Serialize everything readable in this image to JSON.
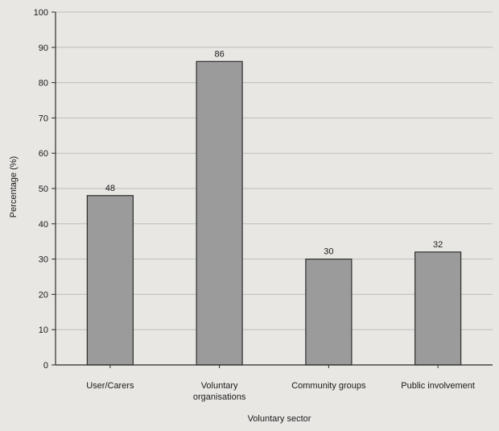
{
  "chart_data": {
    "type": "bar",
    "title": "",
    "xlabel": "Voluntary sector",
    "ylabel": "Percentage (%)",
    "categories": [
      "User/Carers",
      "Voluntary organisations",
      "Community groups",
      "Public involvement"
    ],
    "category_label_lines": [
      [
        "User/Carers"
      ],
      [
        "Voluntary",
        "organisations"
      ],
      [
        "Community groups"
      ],
      [
        "Public involvement"
      ]
    ],
    "values": [
      48,
      86,
      30,
      32
    ],
    "data_labels": [
      "48",
      "86",
      "30",
      "32"
    ],
    "ylim": [
      0,
      100
    ],
    "yticks": [
      0,
      10,
      20,
      30,
      40,
      50,
      60,
      70,
      80,
      90,
      100
    ],
    "grid": true,
    "legend": "none",
    "colors": {
      "bar_fill": "#9b9b9b",
      "bar_stroke": "#2e2e2e",
      "grid": "#bdbdbd",
      "axis": "#2b2b2b",
      "background": "#e9e7e4"
    }
  }
}
